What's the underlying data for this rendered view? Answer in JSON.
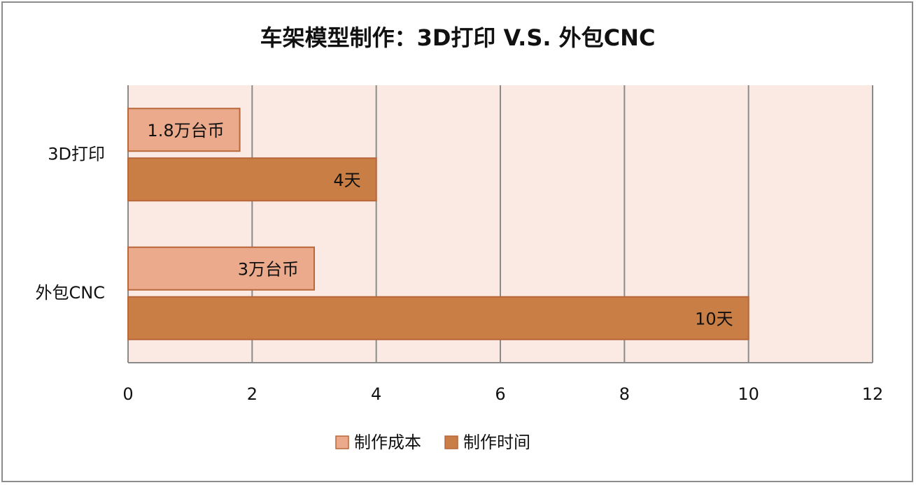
{
  "chart_data": {
    "type": "bar",
    "orientation": "horizontal",
    "title": "车架模型制作：3D打印 V.S. 外包CNC",
    "categories": [
      "3D打印",
      "外包CNC"
    ],
    "series": [
      {
        "name": "制作成本",
        "color": "#eaaa8b",
        "values": [
          1.8,
          3
        ],
        "value_labels": [
          "1.8万台币",
          "3万台币"
        ]
      },
      {
        "name": "制作时间",
        "color": "#c97e45",
        "values": [
          4,
          10
        ],
        "value_labels": [
          "4天",
          "10天"
        ]
      }
    ],
    "xlim": [
      0,
      12
    ],
    "xticks": [
      0,
      2,
      4,
      6,
      8,
      10,
      12
    ],
    "grid": true,
    "legend": "bottom"
  }
}
